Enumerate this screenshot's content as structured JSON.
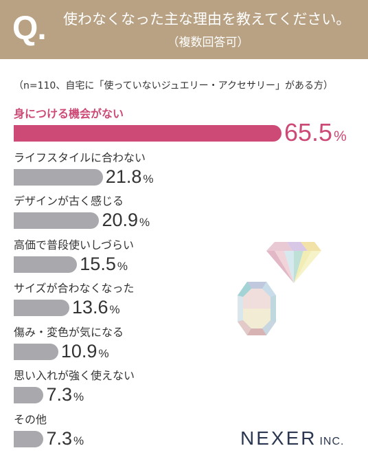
{
  "header": {
    "q_mark": "Q",
    "q_dot": ".",
    "question": "使わなくなった主な理由を教えてください。",
    "subtitle": "（複数回答可）"
  },
  "note": "（n=110、自宅に「使っていないジュエリー・アクセサリー」がある方）",
  "colors": {
    "header_bg": "#b9a283",
    "highlight": "#cc4a75",
    "bar_gray": "#a8a8ad"
  },
  "chart_data": {
    "type": "bar",
    "orientation": "horizontal",
    "unit": "%",
    "categories": [
      "身につける機会がない",
      "ライフスタイルに合わない",
      "デザインが古く感じる",
      "高価で普段使いしづらい",
      "サイズが合わなくなった",
      "傷み・変色が気になる",
      "思い入れが強く使えない",
      "その他"
    ],
    "values": [
      65.5,
      21.8,
      20.9,
      15.5,
      13.6,
      10.9,
      7.3,
      7.3
    ],
    "value_labels": [
      "65.5",
      "21.8",
      "20.9",
      "15.5",
      "13.6",
      "10.9",
      "7.3",
      "7.3"
    ],
    "highlight_index": 0,
    "xlim": [
      0,
      65.5
    ]
  },
  "logo": {
    "name": "NEXER",
    "suffix": "INC."
  }
}
